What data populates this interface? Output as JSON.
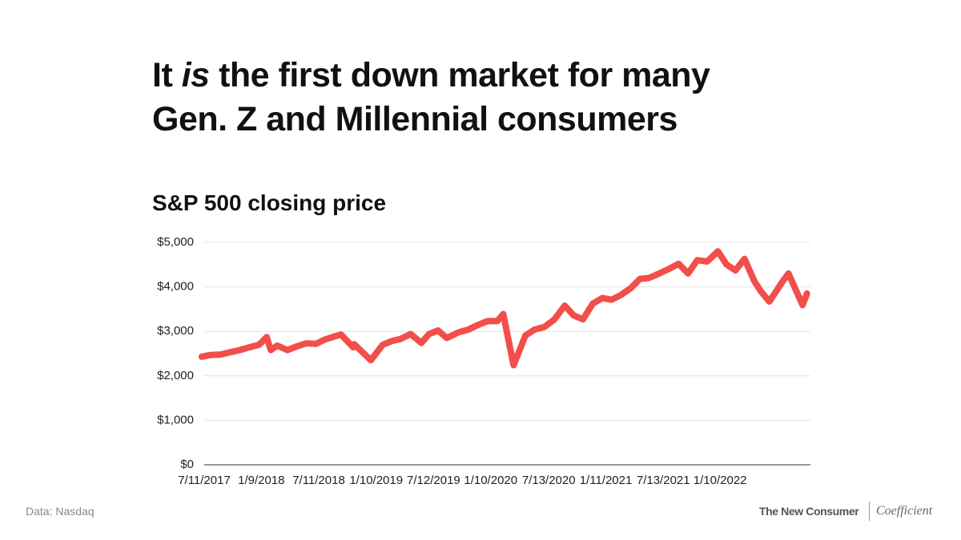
{
  "title": {
    "line1": [
      "It",
      "is",
      "the first down market for many"
    ],
    "line2": "Gen. Z and Millennial consumers"
  },
  "chart_data": {
    "type": "line",
    "title": "S&P 500 closing price",
    "x": [
      "7/3/2017",
      "8/1/2017",
      "9/1/2017",
      "10/2/2017",
      "11/1/2017",
      "12/1/2017",
      "1/2/2018",
      "1/26/2018",
      "2/8/2018",
      "3/1/2018",
      "4/2/2018",
      "5/1/2018",
      "6/1/2018",
      "7/2/2018",
      "8/1/2018",
      "9/20/2018",
      "10/29/2018",
      "11/1/2018",
      "12/24/2018",
      "1/31/2019",
      "2/28/2019",
      "3/29/2019",
      "4/30/2019",
      "6/3/2019",
      "6/28/2019",
      "7/26/2019",
      "8/23/2019",
      "9/30/2019",
      "10/31/2019",
      "11/29/2019",
      "12/31/2019",
      "1/31/2020",
      "2/19/2020",
      "3/23/2020",
      "4/30/2020",
      "5/29/2020",
      "6/30/2020",
      "7/31/2020",
      "9/2/2020",
      "9/30/2020",
      "10/30/2020",
      "11/30/2020",
      "12/31/2020",
      "1/29/2021",
      "2/26/2021",
      "3/31/2021",
      "4/30/2021",
      "5/28/2021",
      "6/30/2021",
      "7/30/2021",
      "8/31/2021",
      "9/30/2021",
      "10/29/2021",
      "11/30/2021",
      "1/3/2022",
      "1/31/2022",
      "2/28/2022",
      "3/29/2022",
      "4/29/2022",
      "5/20/2022",
      "6/16/2022",
      "7/29/2022",
      "8/16/2022",
      "9/30/2022",
      "10/14/2022"
    ],
    "series": [
      {
        "name": "S&P 500",
        "color": "#f24e4a",
        "values": [
          2430,
          2470,
          2480,
          2530,
          2580,
          2640,
          2700,
          2870,
          2580,
          2680,
          2580,
          2660,
          2730,
          2720,
          2820,
          2930,
          2640,
          2710,
          2350,
          2700,
          2780,
          2830,
          2940,
          2740,
          2940,
          3020,
          2850,
          2980,
          3040,
          3140,
          3230,
          3230,
          3390,
          2240,
          2910,
          3040,
          3100,
          3270,
          3580,
          3360,
          3270,
          3620,
          3750,
          3710,
          3810,
          3970,
          4180,
          4200,
          4300,
          4400,
          4520,
          4300,
          4600,
          4570,
          4800,
          4500,
          4370,
          4630,
          4130,
          3900,
          3670,
          4130,
          4300,
          3590,
          3850
        ]
      }
    ],
    "xlim": [
      "7/11/2017",
      "10/25/2022"
    ],
    "xticks": [
      "7/11/2017",
      "1/9/2018",
      "7/11/2018",
      "1/10/2019",
      "7/12/2019",
      "1/10/2020",
      "7/13/2020",
      "1/11/2021",
      "7/13/2021",
      "1/10/2022"
    ],
    "ylim": [
      0,
      5000
    ],
    "yticks": [
      {
        "value": 0,
        "label": "$0"
      },
      {
        "value": 1000,
        "label": "$1,000"
      },
      {
        "value": 2000,
        "label": "$2,000"
      },
      {
        "value": 3000,
        "label": "$3,000"
      },
      {
        "value": 4000,
        "label": "$4,000"
      },
      {
        "value": 5000,
        "label": "$5,000"
      }
    ],
    "grid": true
  },
  "footer": {
    "source": "Data: Nasdaq",
    "brand": "The New Consumer",
    "partner": "Coefficient"
  }
}
